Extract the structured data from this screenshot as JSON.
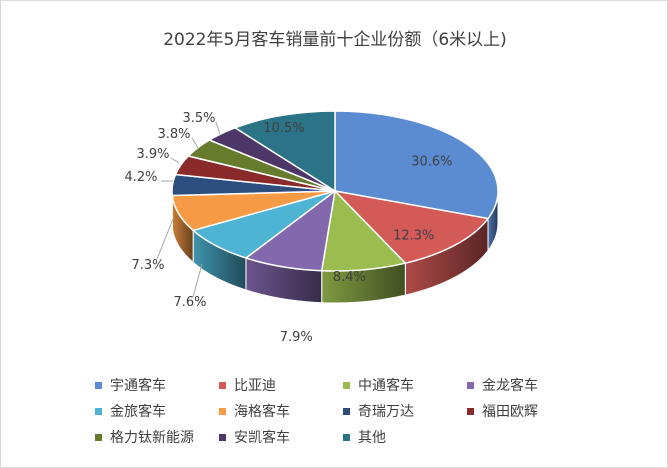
{
  "chart_data": {
    "type": "pie",
    "title": "2022年5月客车销量前十企业份额（6米以上)",
    "slices": [
      {
        "name": "宇通客车",
        "value": 30.6,
        "label": "30.6%",
        "color": "#5b8bd1"
      },
      {
        "name": "比亚迪",
        "value": 12.3,
        "label": "12.3%",
        "color": "#d45a57"
      },
      {
        "name": "中通客车",
        "value": 8.4,
        "label": "8.4%",
        "color": "#9bbd4f"
      },
      {
        "name": "金龙客车",
        "value": 7.9,
        "label": "7.9%",
        "color": "#8468ad"
      },
      {
        "name": "金旅客车",
        "value": 7.6,
        "label": "7.6%",
        "color": "#4db5d3"
      },
      {
        "name": "海格客车",
        "value": 7.3,
        "label": "7.3%",
        "color": "#f79a45"
      },
      {
        "name": "奇瑞万达",
        "value": 4.2,
        "label": "4.2%",
        "color": "#2e4e7f"
      },
      {
        "name": "福田欧辉",
        "value": 3.9,
        "label": "3.9%",
        "color": "#8b2a2a"
      },
      {
        "name": "格力钛新能源",
        "value": 3.8,
        "label": "3.8%",
        "color": "#667b2b"
      },
      {
        "name": "安凯客车",
        "value": 3.5,
        "label": "3.5%",
        "color": "#4c3768"
      },
      {
        "name": "其他",
        "value": 10.5,
        "label": "10.5%",
        "color": "#2b7387"
      }
    ],
    "legend_position": "bottom"
  }
}
